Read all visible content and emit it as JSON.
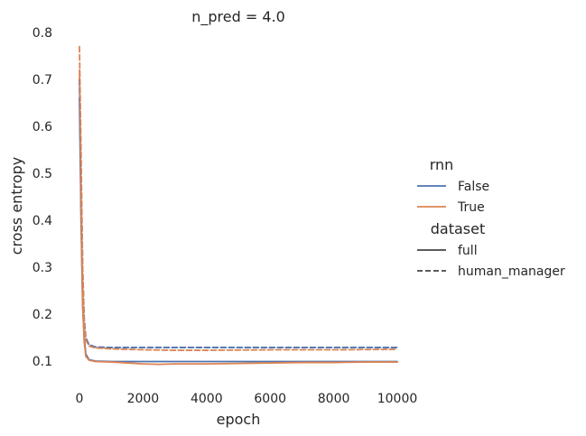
{
  "chart_data": {
    "type": "line",
    "title": "n_pred = 4.0",
    "xlabel": "epoch",
    "ylabel": "cross entropy",
    "xlim": [
      -300,
      10000
    ],
    "ylim": [
      0.08,
      0.8
    ],
    "xticks": [
      0,
      2000,
      4000,
      6000,
      8000,
      10000
    ],
    "yticks": [
      0.1,
      0.2,
      0.3,
      0.4,
      0.5,
      0.6,
      0.7,
      0.8
    ],
    "grid": false,
    "legend_position": "right",
    "legend": {
      "hue_title": "rnn",
      "hue_entries": [
        {
          "label": "False",
          "color": "#4c72b0"
        },
        {
          "label": "True",
          "color": "#dd8452"
        }
      ],
      "style_title": "dataset",
      "style_entries": [
        {
          "label": "full",
          "dash": "solid"
        },
        {
          "label": "human_manager",
          "dash": "dashed"
        }
      ]
    },
    "series": [
      {
        "rnn": "False",
        "dataset": "full",
        "color": "#4c72b0",
        "dash": "solid",
        "x": [
          0,
          50,
          100,
          150,
          200,
          300,
          500,
          1000,
          2000,
          4000,
          6000,
          8000,
          10000
        ],
        "y": [
          0.66,
          0.4,
          0.22,
          0.15,
          0.115,
          0.103,
          0.1,
          0.099,
          0.099,
          0.099,
          0.099,
          0.099,
          0.099
        ]
      },
      {
        "rnn": "True",
        "dataset": "full",
        "color": "#dd8452",
        "dash": "solid",
        "x": [
          0,
          50,
          100,
          150,
          200,
          300,
          500,
          1000,
          1500,
          2000,
          2500,
          3000,
          4000,
          5000,
          6000,
          7000,
          8000,
          9000,
          10000
        ],
        "y": [
          0.72,
          0.42,
          0.22,
          0.14,
          0.11,
          0.102,
          0.099,
          0.098,
          0.096,
          0.094,
          0.093,
          0.094,
          0.094,
          0.095,
          0.096,
          0.097,
          0.097,
          0.098,
          0.098
        ]
      },
      {
        "rnn": "False",
        "dataset": "human_manager",
        "color": "#4c72b0",
        "dash": "dashed",
        "x": [
          0,
          50,
          100,
          150,
          200,
          300,
          500,
          1000,
          2000,
          4000,
          6000,
          8000,
          10000
        ],
        "y": [
          0.7,
          0.5,
          0.3,
          0.19,
          0.15,
          0.135,
          0.13,
          0.129,
          0.129,
          0.129,
          0.129,
          0.129,
          0.129
        ]
      },
      {
        "rnn": "True",
        "dataset": "human_manager",
        "color": "#dd8452",
        "dash": "dashed",
        "x": [
          0,
          50,
          100,
          150,
          200,
          300,
          500,
          1000,
          2000,
          3000,
          4000,
          6000,
          8000,
          10000
        ],
        "y": [
          0.77,
          0.55,
          0.3,
          0.18,
          0.145,
          0.132,
          0.128,
          0.126,
          0.124,
          0.123,
          0.123,
          0.124,
          0.124,
          0.125
        ]
      }
    ]
  }
}
